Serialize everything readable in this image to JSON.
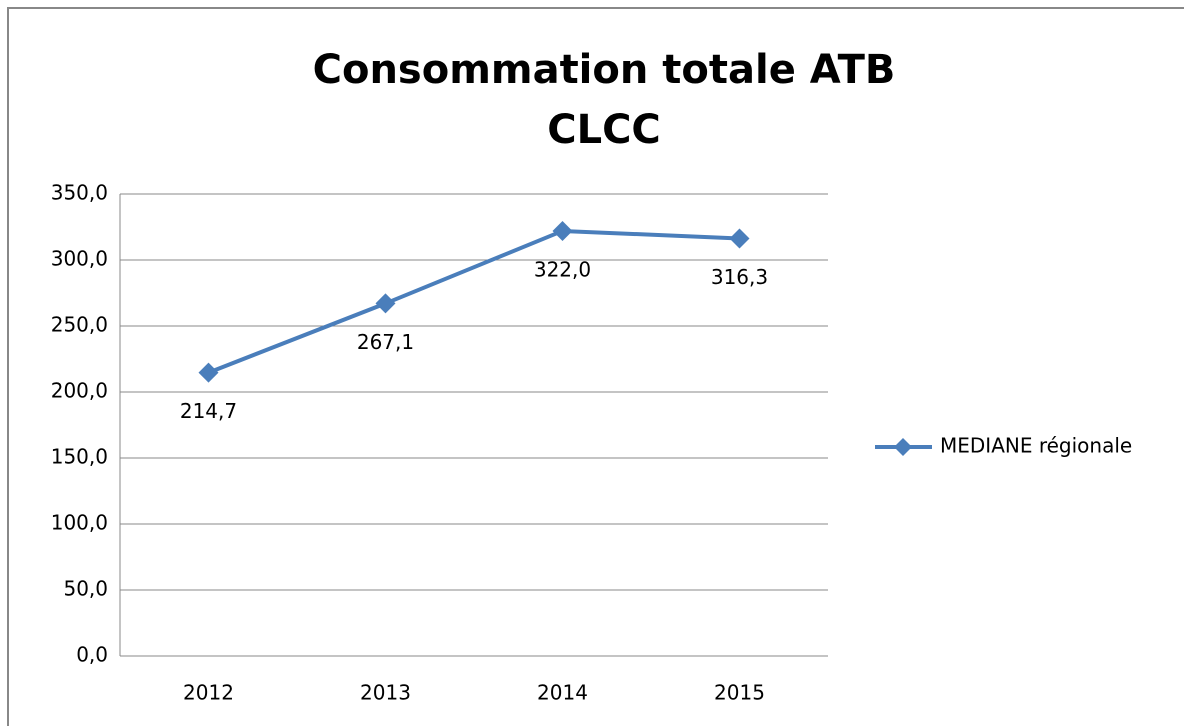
{
  "chart_data": {
    "type": "line",
    "title": [
      "Consommation totale ATB",
      "CLCC"
    ],
    "categories": [
      "2012",
      "2013",
      "2014",
      "2015"
    ],
    "series": [
      {
        "name": "MEDIANE régionale",
        "color": "#4a7ebb",
        "values": [
          214.7,
          267.1,
          322.0,
          316.3
        ],
        "value_labels": [
          "214,7",
          "267,1",
          "322,0",
          "316,3"
        ]
      }
    ],
    "ylim": [
      0,
      350
    ],
    "yticks": [
      {
        "value": 0,
        "label": "0,0"
      },
      {
        "value": 50,
        "label": "50,0"
      },
      {
        "value": 100,
        "label": "100,0"
      },
      {
        "value": 150,
        "label": "150,0"
      },
      {
        "value": 200,
        "label": "200,0"
      },
      {
        "value": 250,
        "label": "250,0"
      },
      {
        "value": 300,
        "label": "300,0"
      },
      {
        "value": 350,
        "label": "350,0"
      }
    ],
    "grid": true,
    "legend": "right"
  }
}
